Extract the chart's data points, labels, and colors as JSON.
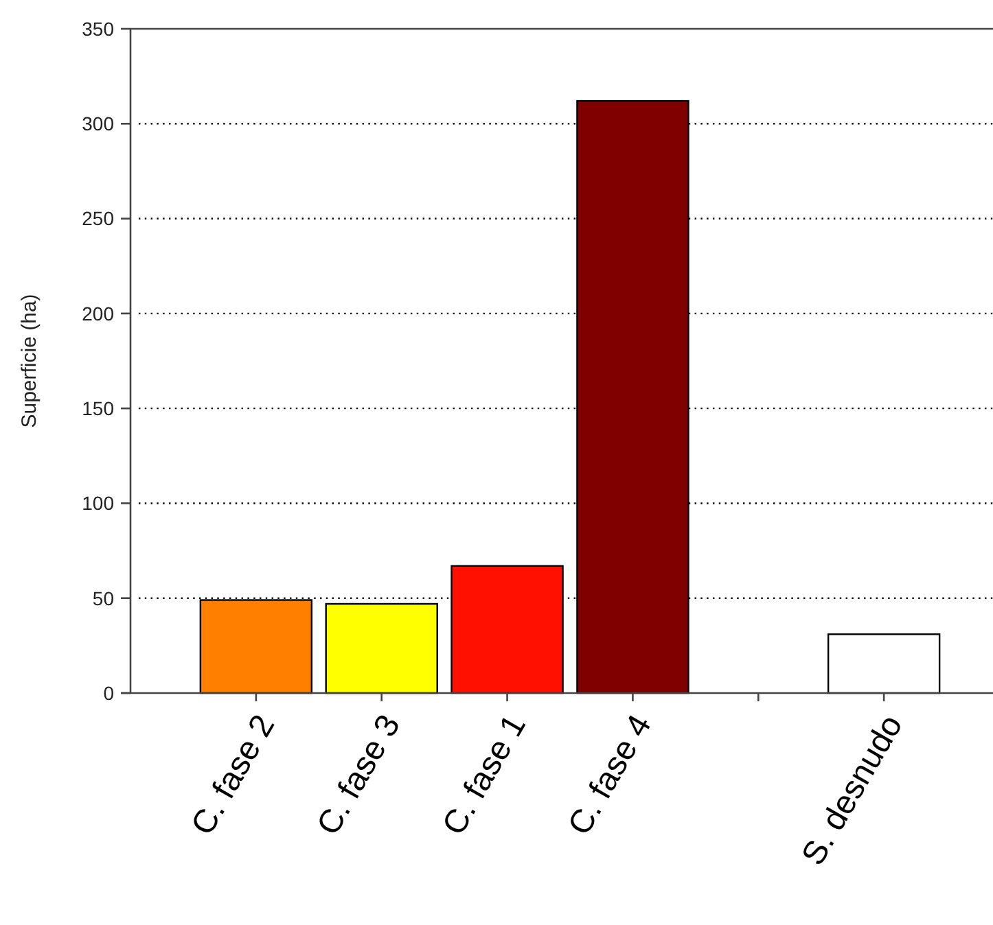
{
  "chart_data": {
    "type": "bar",
    "ylabel": "Superficie (ha)",
    "categories": [
      "C. fase 2",
      "C. fase 3",
      "C. fase 1",
      "C. fase 4",
      null,
      "S. desnudo"
    ],
    "values": [
      49,
      47,
      67,
      312,
      null,
      31
    ],
    "colors": [
      "#ff8000",
      "#ffff00",
      "#ff1000",
      "#800000",
      null,
      "#ffffff"
    ],
    "ylim": [
      0,
      350
    ],
    "yticks": [
      0,
      50,
      100,
      150,
      200,
      250,
      300,
      350
    ],
    "grid": "y"
  }
}
